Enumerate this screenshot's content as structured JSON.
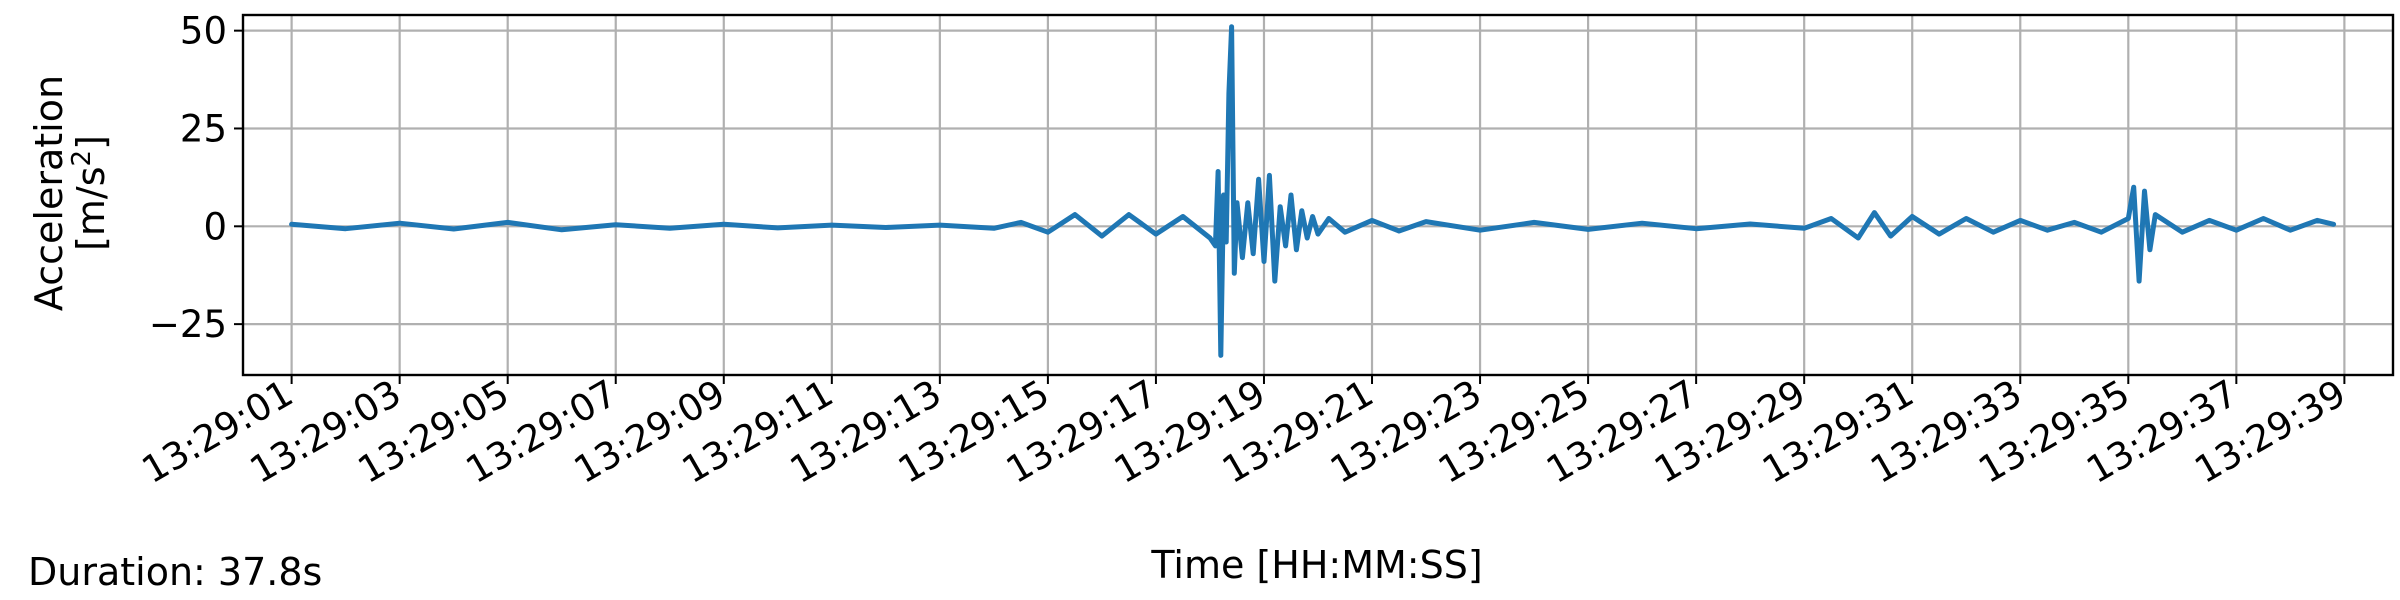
{
  "footer": {
    "duration_text": "Duration: 37.8s"
  },
  "colors": {
    "series": "#1f77b4",
    "grid": "#b0b0b0",
    "axes": "#000000"
  },
  "chart_data": {
    "type": "line",
    "title": "",
    "xlabel": "Time [HH:MM:SS]",
    "ylabel_line1": "Acceleration",
    "ylabel_line2_base": "[m/s",
    "ylabel_line2_sup": "2",
    "ylabel_line2_end": "]",
    "xticks": [
      "13:29:01",
      "13:29:03",
      "13:29:05",
      "13:29:07",
      "13:29:09",
      "13:29:11",
      "13:29:13",
      "13:29:15",
      "13:29:17",
      "13:29:19",
      "13:29:21",
      "13:29:23",
      "13:29:25",
      "13:29:27",
      "13:29:29",
      "13:29:31",
      "13:29:33",
      "13:29:35",
      "13:29:37",
      "13:29:39"
    ],
    "yticks": [
      50,
      25,
      0,
      -25
    ],
    "ytick_labels": [
      "50",
      "25",
      "0",
      "−25"
    ],
    "xlim": [
      "13:29:00.1",
      "13:29:39.9"
    ],
    "ylim": [
      -38,
      54
    ],
    "grid": true,
    "series": [
      {
        "x": [
          "13:29:01.0",
          "13:29:02.0",
          "13:29:03.0",
          "13:29:04.0",
          "13:29:05.0",
          "13:29:06.0",
          "13:29:07.0",
          "13:29:08.0",
          "13:29:09.0",
          "13:29:10.0",
          "13:29:11.0",
          "13:29:12.0",
          "13:29:13.0",
          "13:29:14.0",
          "13:29:14.5",
          "13:29:15.0",
          "13:29:15.5",
          "13:29:16.0",
          "13:29:16.5",
          "13:29:17.0",
          "13:29:17.5",
          "13:29:18.0",
          "13:29:18.1",
          "13:29:18.15",
          "13:29:18.2",
          "13:29:18.25",
          "13:29:18.3",
          "13:29:18.35",
          "13:29:18.4",
          "13:29:18.45",
          "13:29:18.5",
          "13:29:18.6",
          "13:29:18.7",
          "13:29:18.8",
          "13:29:18.9",
          "13:29:19.0",
          "13:29:19.1",
          "13:29:19.2",
          "13:29:19.3",
          "13:29:19.4",
          "13:29:19.5",
          "13:29:19.6",
          "13:29:19.7",
          "13:29:19.8",
          "13:29:19.9",
          "13:29:20.0",
          "13:29:20.2",
          "13:29:20.5",
          "13:29:21.0",
          "13:29:21.5",
          "13:29:22.0",
          "13:29:23.0",
          "13:29:24.0",
          "13:29:25.0",
          "13:29:26.0",
          "13:29:27.0",
          "13:29:28.0",
          "13:29:29.0",
          "13:29:29.5",
          "13:29:30.0",
          "13:29:30.3",
          "13:29:30.6",
          "13:29:31.0",
          "13:29:31.5",
          "13:29:32.0",
          "13:29:32.5",
          "13:29:33.0",
          "13:29:33.5",
          "13:29:34.0",
          "13:29:34.5",
          "13:29:35.0",
          "13:29:35.1",
          "13:29:35.2",
          "13:29:35.3",
          "13:29:35.4",
          "13:29:35.5",
          "13:29:36.0",
          "13:29:36.5",
          "13:29:37.0",
          "13:29:37.5",
          "13:29:38.0",
          "13:29:38.5",
          "13:29:38.8"
        ],
        "y": [
          0.5,
          -0.6,
          0.8,
          -0.7,
          1.0,
          -0.9,
          0.4,
          -0.5,
          0.5,
          -0.4,
          0.3,
          -0.3,
          0.3,
          -0.5,
          1.0,
          -1.5,
          3.0,
          -2.5,
          3.0,
          -2.0,
          2.5,
          -3.0,
          -5.0,
          14.0,
          -33.0,
          8.0,
          -4.0,
          34.0,
          51.0,
          -12.0,
          6.0,
          -8.0,
          6.0,
          -7.0,
          12.0,
          -9.0,
          13.0,
          -14.0,
          5.0,
          -5.0,
          8.0,
          -6.0,
          4.0,
          -3.0,
          2.5,
          -2.0,
          2.0,
          -1.5,
          1.5,
          -1.2,
          1.2,
          -1.0,
          1.0,
          -0.8,
          0.8,
          -0.6,
          0.6,
          -0.5,
          2.0,
          -3.0,
          3.5,
          -2.5,
          2.5,
          -2.0,
          2.0,
          -1.5,
          1.5,
          -1.0,
          1.0,
          -1.5,
          2.0,
          10.0,
          -14.0,
          9.0,
          -6.0,
          3.0,
          -1.5,
          1.5,
          -1.0,
          2.0,
          -1.0,
          1.5,
          0.5
        ]
      }
    ]
  }
}
